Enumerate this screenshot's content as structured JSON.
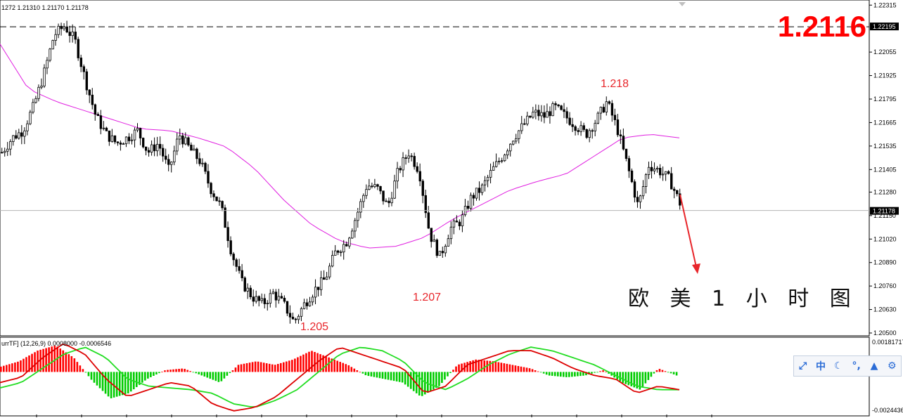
{
  "header": {
    "ohlc_text": "1272 1.21310 1.21170 1.21178"
  },
  "big_price": "1.2116",
  "chinese_label": "欧 美 1 小 时 图",
  "price_axis": {
    "ticks": [
      "1.22315",
      "1.22055",
      "1.21925",
      "1.21795",
      "1.21665",
      "1.21535",
      "1.21405",
      "1.21280",
      "1.21150",
      "1.21020",
      "1.20890",
      "1.20760",
      "1.20630",
      "1.20500"
    ],
    "dashed_level_label": "1.22195",
    "current_price_label": "1.21178"
  },
  "annotations": {
    "high_label": "1.218",
    "low1_label": "1.205",
    "low2_label": "1.207"
  },
  "oscillator": {
    "label": "urrTF] (12,26,9) 0.0008000 -0.0006546",
    "axis_top": "0.00181717",
    "axis_bottom": "-0.00244363"
  },
  "chart_data": {
    "type": "candlestick",
    "title": "",
    "ylim": [
      1.205,
      1.2232
    ],
    "dashed_level": 1.22195,
    "current_price": 1.21178,
    "pivots": [
      {
        "label": "1.205",
        "value": 1.2054
      },
      {
        "label": "1.207",
        "value": 1.2077
      },
      {
        "label": "1.218",
        "value": 1.2183
      }
    ],
    "close_path": [
      1.215,
      1.2158,
      1.2162,
      1.2175,
      1.2193,
      1.2215,
      1.222,
      1.2212,
      1.219,
      1.217,
      1.216,
      1.2155,
      1.2158,
      1.2162,
      1.215,
      1.2155,
      1.214,
      1.216,
      1.2152,
      1.2145,
      1.213,
      1.212,
      1.2095,
      1.2078,
      1.207,
      1.2066,
      1.2072,
      1.2066,
      1.2056,
      1.2066,
      1.2074,
      1.208,
      1.2095,
      1.21,
      1.2115,
      1.2132,
      1.213,
      1.212,
      1.214,
      1.215,
      1.214,
      1.2105,
      1.2092,
      1.2108,
      1.2112,
      1.2125,
      1.213,
      1.214,
      1.2148,
      1.2158,
      1.2165,
      1.2172,
      1.217,
      1.2175,
      1.217,
      1.2165,
      1.216,
      1.2168,
      1.2178,
      1.2163,
      1.2142,
      1.212,
      1.2143,
      1.214,
      1.2135,
      1.2122
    ],
    "ma_path": [
      1.221,
      1.2185,
      1.2178,
      1.2173,
      1.2168,
      1.2163,
      1.2162,
      1.2158,
      1.2153,
      1.2141,
      1.2124,
      1.211,
      1.2101,
      1.2097,
      1.2098,
      1.2103,
      1.2113,
      1.2121,
      1.2129,
      1.2134,
      1.2138,
      1.2148,
      1.2158,
      1.216,
      1.2158
    ],
    "histogram": [
      0.0003,
      0.0006,
      0.0012,
      0.0015,
      0.0008,
      -0.0005,
      -0.0015,
      -0.0012,
      -0.0004,
      0.0001,
      0.0002,
      -0.0002,
      -0.0006,
      0.0004,
      0.0006,
      0.0004,
      0.0007,
      0.0012,
      0.0008,
      0.0004,
      -0.0002,
      -0.0004,
      -0.0006,
      -0.0014,
      -0.0008,
      0.0004,
      0.0007,
      0.0006,
      0.0004,
      0.0002,
      -0.0002,
      -0.0003,
      -0.0002,
      0.0001,
      -0.0006,
      -0.001,
      0.0002,
      -0.0002
    ],
    "macd_line": [
      -0.0006,
      -0.0003,
      0.0008,
      0.0016,
      0.001,
      -0.0004,
      -0.0014,
      -0.001,
      -0.0006,
      -0.0008,
      -0.0018,
      -0.0022,
      -0.002,
      -0.0014,
      -0.0004,
      0.0006,
      0.0014,
      0.001,
      0.0006,
      0.0002,
      -0.0012,
      -0.0008,
      0.0004,
      0.0008,
      0.0012,
      0.0012,
      0.0008,
      0.0002,
      -0.0002,
      -0.0004,
      -0.0012,
      -0.0008,
      -0.001
    ],
    "signal_line": [
      -0.0009,
      -0.0006,
      0.0002,
      0.001,
      0.0014,
      0.0008,
      -0.0004,
      -0.0008,
      -0.0009,
      -0.001,
      -0.0012,
      -0.0018,
      -0.002,
      -0.0016,
      -0.001,
      0.0,
      0.001,
      0.0014,
      0.0012,
      0.0006,
      -0.0006,
      -0.001,
      -0.0004,
      0.0004,
      0.001,
      0.0014,
      0.0012,
      0.0008,
      0.0004,
      -0.0002,
      -0.0008,
      -0.001,
      -0.001
    ],
    "osc_ylim": [
      -0.0024,
      0.0018
    ]
  },
  "colors": {
    "candle": "#000000",
    "ma": "#e01ee0",
    "bull_hist": "#ff0000",
    "bear_hist": "#00cc00",
    "macd": "#dd0000",
    "signal": "#22dd22",
    "annotation": "#e8262b",
    "big_price": "#ff0000",
    "arrow": "#e8262b"
  },
  "toolbar": {
    "icons": [
      "expand-icon",
      "zhong-icon",
      "moon-icon",
      "dots-icon",
      "user-icon",
      "gear-icon"
    ],
    "zhong_label": "中",
    "moon_glyph": "☾",
    "dots_glyph": "°,",
    "user_glyph": "▲",
    "gear_glyph": "⚙",
    "expand_glyph": "⤢"
  }
}
